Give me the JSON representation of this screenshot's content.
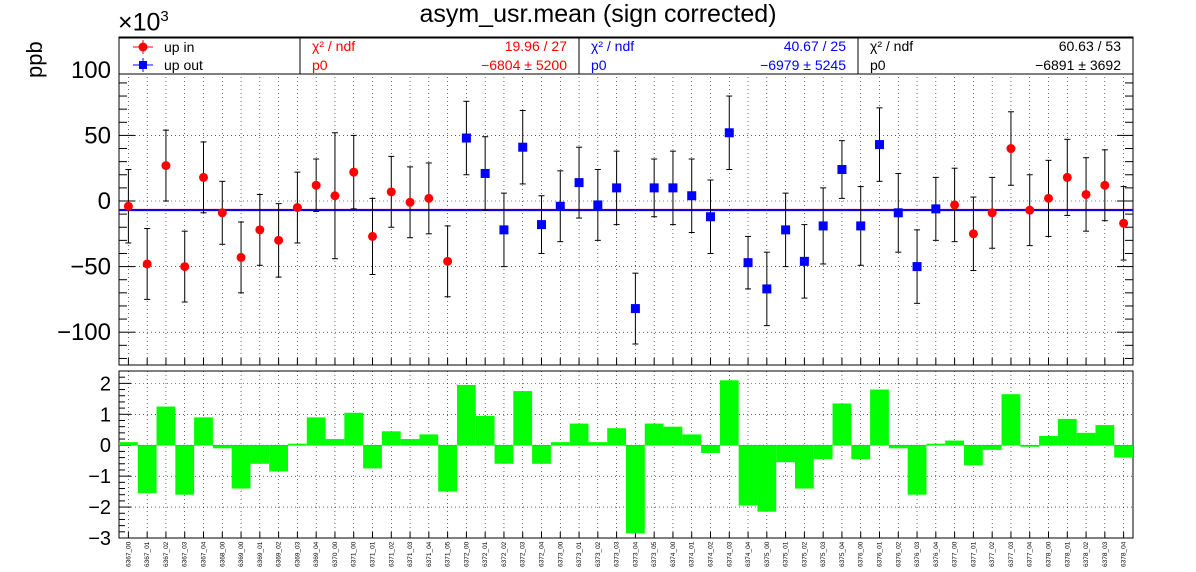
{
  "chart_data": {
    "type": "scatter",
    "title": "asym_usr.mean (sign corrected)",
    "exponent_label": "×10",
    "exponent_power": "3",
    "ylabel": "ppb",
    "ylim": [
      -125,
      125
    ],
    "yticks": [
      -100,
      -50,
      0,
      50,
      100
    ],
    "residual_ylim": [
      -3,
      2.4
    ],
    "residual_yticks": [
      -3,
      -2,
      -1,
      0,
      1,
      2
    ],
    "grid": true,
    "legend": [
      {
        "name": "up in",
        "color": "#ff0000",
        "marker": "circle"
      },
      {
        "name": "up out",
        "color": "#0000ff",
        "marker": "square"
      }
    ],
    "fit_boxes": [
      {
        "color": "#ff0000",
        "chi_label": "χ² / ndf",
        "chi_value": "19.96 / 27",
        "p0_label": "p0",
        "p0_value": "−6804 ±  5200"
      },
      {
        "color": "#0000ff",
        "chi_label": "χ² / ndf",
        "chi_value": "40.67 / 25",
        "p0_label": "p0",
        "p0_value": "−6979 ±  5245"
      },
      {
        "color": "#000000",
        "chi_label": "χ² / ndf",
        "chi_value": "60.63 / 53",
        "p0_label": "p0",
        "p0_value": "−6891 ±  3692"
      }
    ],
    "fit_lines": [
      {
        "color": "#ff0000",
        "value": -6.804
      },
      {
        "color": "#0000ff",
        "value": -6.979
      }
    ],
    "categories": [
      "6367_00",
      "6367_01",
      "6367_02",
      "6367_03",
      "6367_04",
      "6368_00",
      "6369_00",
      "6369_01",
      "6369_02",
      "6369_03",
      "6369_04",
      "6370_00",
      "6371_00",
      "6371_01",
      "6371_02",
      "6371_03",
      "6371_04",
      "6371_05",
      "6372_00",
      "6372_01",
      "6372_02",
      "6372_03",
      "6372_04",
      "6373_00",
      "6373_01",
      "6373_02",
      "6373_03",
      "6373_04",
      "6373_05",
      "6374_00",
      "6374_01",
      "6374_02",
      "6374_03",
      "6374_04",
      "6375_00",
      "6375_01",
      "6375_02",
      "6375_03",
      "6375_04",
      "6376_00",
      "6376_01",
      "6376_02",
      "6376_03",
      "6376_04",
      "6377_00",
      "6377_01",
      "6377_02",
      "6377_03",
      "6377_04",
      "6378_00",
      "6378_01",
      "6378_02",
      "6378_03",
      "6378_04"
    ],
    "series": [
      {
        "name": "up in",
        "color": "#ff0000",
        "marker": "circle",
        "points": [
          {
            "i": 0,
            "y": -4,
            "err": 28
          },
          {
            "i": 1,
            "y": -48,
            "err": 27
          },
          {
            "i": 2,
            "y": 27,
            "err": 27
          },
          {
            "i": 3,
            "y": -50,
            "err": 27
          },
          {
            "i": 4,
            "y": 18,
            "err": 27
          },
          {
            "i": 5,
            "y": -9,
            "err": 24
          },
          {
            "i": 6,
            "y": -43,
            "err": 27
          },
          {
            "i": 7,
            "y": -22,
            "err": 27
          },
          {
            "i": 8,
            "y": -30,
            "err": 28
          },
          {
            "i": 9,
            "y": -5,
            "err": 27
          },
          {
            "i": 10,
            "y": 12,
            "err": 20
          },
          {
            "i": 11,
            "y": 4,
            "err": 48
          },
          {
            "i": 12,
            "y": 22,
            "err": 28
          },
          {
            "i": 13,
            "y": -27,
            "err": 29
          },
          {
            "i": 14,
            "y": 7,
            "err": 27
          },
          {
            "i": 15,
            "y": -1,
            "err": 27
          },
          {
            "i": 16,
            "y": 2,
            "err": 27
          },
          {
            "i": 17,
            "y": -46,
            "err": 27
          },
          {
            "i": 44,
            "y": -3,
            "err": 28
          },
          {
            "i": 45,
            "y": -25,
            "err": 28
          },
          {
            "i": 46,
            "y": -9,
            "err": 27
          },
          {
            "i": 47,
            "y": 40,
            "err": 28
          },
          {
            "i": 48,
            "y": -7,
            "err": 27
          },
          {
            "i": 49,
            "y": 2,
            "err": 29
          },
          {
            "i": 50,
            "y": 18,
            "err": 29
          },
          {
            "i": 51,
            "y": 5,
            "err": 28
          },
          {
            "i": 52,
            "y": 12,
            "err": 27
          },
          {
            "i": 53,
            "y": -17,
            "err": 28
          }
        ]
      },
      {
        "name": "up out",
        "color": "#0000ff",
        "marker": "square",
        "points": [
          {
            "i": 18,
            "y": 48,
            "err": 28
          },
          {
            "i": 19,
            "y": 21,
            "err": 28
          },
          {
            "i": 20,
            "y": -22,
            "err": 28
          },
          {
            "i": 21,
            "y": 41,
            "err": 28
          },
          {
            "i": 22,
            "y": -18,
            "err": 22
          },
          {
            "i": 23,
            "y": -4,
            "err": 27
          },
          {
            "i": 24,
            "y": 14,
            "err": 27
          },
          {
            "i": 25,
            "y": -3,
            "err": 27
          },
          {
            "i": 26,
            "y": 10,
            "err": 28
          },
          {
            "i": 27,
            "y": -82,
            "err": 27
          },
          {
            "i": 28,
            "y": 10,
            "err": 22
          },
          {
            "i": 29,
            "y": 10,
            "err": 28
          },
          {
            "i": 30,
            "y": 4,
            "err": 28
          },
          {
            "i": 31,
            "y": -12,
            "err": 28
          },
          {
            "i": 32,
            "y": 52,
            "err": 28
          },
          {
            "i": 33,
            "y": -47,
            "err": 20
          },
          {
            "i": 34,
            "y": -67,
            "err": 28
          },
          {
            "i": 35,
            "y": -22,
            "err": 28
          },
          {
            "i": 36,
            "y": -46,
            "err": 28
          },
          {
            "i": 37,
            "y": -19,
            "err": 29
          },
          {
            "i": 38,
            "y": 24,
            "err": 22
          },
          {
            "i": 39,
            "y": -19,
            "err": 30
          },
          {
            "i": 40,
            "y": 43,
            "err": 28
          },
          {
            "i": 41,
            "y": -9,
            "err": 30
          },
          {
            "i": 42,
            "y": -50,
            "err": 28
          },
          {
            "i": 43,
            "y": -6,
            "err": 24
          }
        ]
      }
    ],
    "residuals": [
      0.1,
      -1.55,
      1.25,
      -1.6,
      0.9,
      -0.1,
      -1.4,
      -0.6,
      -0.85,
      0.05,
      0.9,
      0.2,
      1.05,
      -0.75,
      0.45,
      0.2,
      0.35,
      -1.5,
      1.95,
      0.95,
      -0.6,
      1.75,
      -0.6,
      0.1,
      0.7,
      0.1,
      0.55,
      -2.85,
      0.7,
      0.6,
      0.35,
      -0.25,
      2.1,
      -1.95,
      -2.15,
      -0.55,
      -1.4,
      -0.45,
      1.35,
      -0.45,
      1.8,
      -0.1,
      -1.6,
      0.05,
      0.15,
      -0.65,
      -0.15,
      1.65,
      -0.05,
      0.3,
      0.85,
      0.4,
      0.65,
      -0.4
    ]
  }
}
